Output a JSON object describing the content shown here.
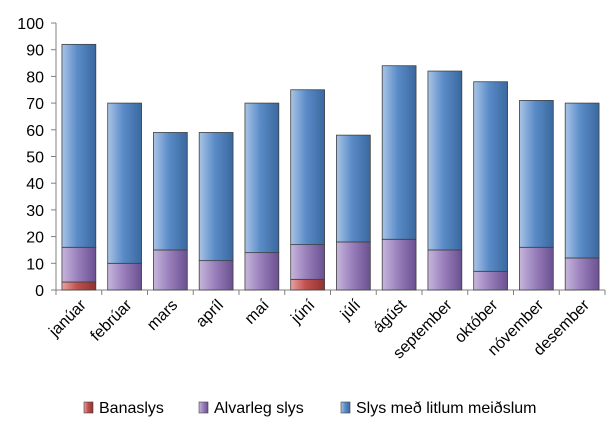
{
  "chart_data": {
    "type": "bar",
    "stacked": true,
    "categories": [
      "janúar",
      "febrúar",
      "mars",
      "apríl",
      "maí",
      "júní",
      "júlí",
      "ágúst",
      "september",
      "október",
      "nóvember",
      "desember"
    ],
    "series": [
      {
        "name": "Banaslys",
        "values": [
          3,
          0,
          0,
          0,
          0,
          4,
          0,
          0,
          0,
          0,
          0,
          0
        ],
        "color": "#c0504d"
      },
      {
        "name": "Alvarleg slys",
        "values": [
          13,
          10,
          15,
          11,
          14,
          13,
          18,
          19,
          15,
          7,
          16,
          12
        ],
        "color": "#8064a2"
      },
      {
        "name": "Slys með litlum meiðslum",
        "values": [
          76,
          60,
          44,
          48,
          56,
          58,
          40,
          65,
          67,
          71,
          55,
          58
        ],
        "color": "#4f81bd"
      }
    ],
    "ylim": [
      0,
      100
    ],
    "yticks": [
      0,
      10,
      20,
      30,
      40,
      50,
      60,
      70,
      80,
      90,
      100
    ],
    "grid": false,
    "legend_position": "bottom",
    "title": "",
    "xlabel": "",
    "ylabel": ""
  }
}
